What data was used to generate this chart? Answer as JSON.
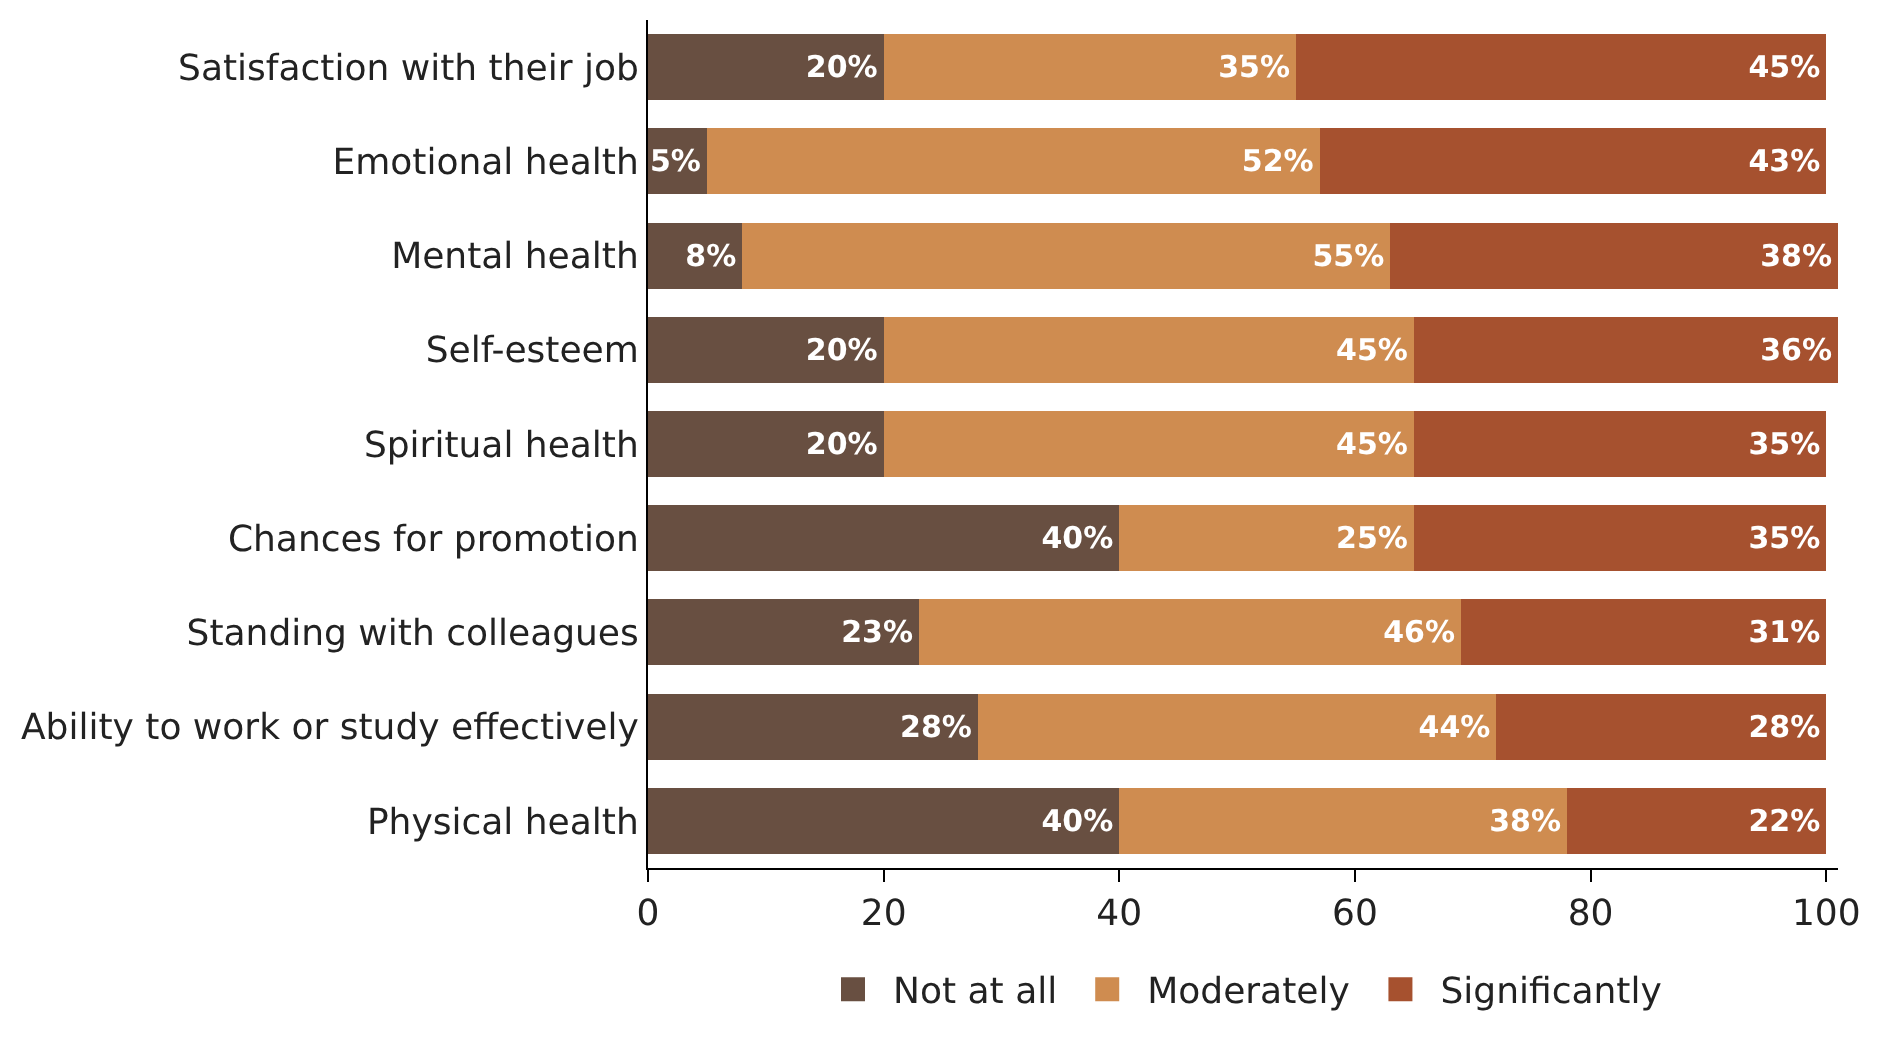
{
  "chart_data": {
    "type": "bar",
    "orientation": "horizontal",
    "stacked": true,
    "legend": "bottom",
    "categories": [
      "Satisfaction with their job",
      "Emotional health",
      "Mental health",
      "Self-esteem",
      "Spiritual health",
      "Chances for promotion",
      "Standing with colleagues",
      "Ability to work or study effectively",
      "Physical health"
    ],
    "series": [
      {
        "name": "Not at all",
        "color": "#684f41",
        "values": [
          20,
          5,
          8,
          20,
          20,
          40,
          23,
          28,
          40
        ],
        "value_labels": [
          "20%",
          "5%",
          "8%",
          "20%",
          "20%",
          "40%",
          "23%",
          "28%",
          "40%"
        ]
      },
      {
        "name": "Moderately",
        "color": "#cf8c50",
        "values": [
          35,
          52,
          55,
          45,
          45,
          25,
          46,
          44,
          38
        ],
        "value_labels": [
          "35%",
          "52%",
          "55%",
          "45%",
          "45%",
          "25%",
          "46%",
          "44%",
          "38%"
        ]
      },
      {
        "name": "Significantly",
        "color": "#a6512f",
        "values": [
          45,
          43,
          38,
          36,
          35,
          35,
          31,
          28,
          22
        ],
        "value_labels": [
          "45%",
          "43%",
          "38%",
          "36%",
          "35%",
          "35%",
          "31%",
          "28%",
          "22%"
        ]
      }
    ],
    "xlim": [
      0,
      101
    ],
    "xticks": [
      0,
      20,
      40,
      60,
      80,
      100
    ]
  }
}
